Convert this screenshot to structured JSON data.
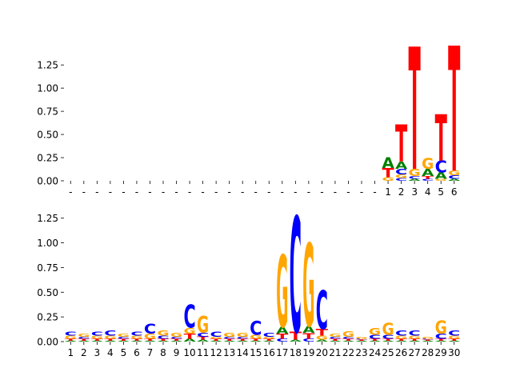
{
  "chart_data": [
    {
      "type": "sequence-logo",
      "title": "",
      "xlabel": "",
      "ylabel": "",
      "ylim": [
        0,
        1.45
      ],
      "yticks": [
        "0.00",
        "0.25",
        "0.50",
        "0.75",
        "1.00",
        "1.25"
      ],
      "positions": [
        "-",
        "-",
        "-",
        "-",
        "-",
        "-",
        "-",
        "-",
        "-",
        "-",
        "-",
        "-",
        "-",
        "-",
        "-",
        "-",
        "-",
        "-",
        "-",
        "-",
        "-",
        "-",
        "-",
        "-",
        "1",
        "2",
        "3",
        "4",
        "5",
        "6"
      ],
      "colors": {
        "A": "#008000",
        "C": "#0000ff",
        "G": "#ffa500",
        "T": "#ff0000"
      },
      "columns": [
        [],
        [],
        [],
        [],
        [],
        [],
        [],
        [],
        [],
        [],
        [],
        [],
        [],
        [],
        [],
        [],
        [],
        [],
        [],
        [],
        [],
        [],
        [],
        [],
        [
          [
            "G",
            0.04
          ],
          [
            "T",
            0.1
          ],
          [
            "A",
            0.12
          ]
        ],
        [
          [
            "C",
            0.03
          ],
          [
            "G",
            0.04
          ],
          [
            "C",
            0.06
          ],
          [
            "A",
            0.08
          ],
          [
            "T",
            0.4
          ]
        ],
        [
          [
            "A",
            0.02
          ],
          [
            "C",
            0.03
          ],
          [
            "G",
            0.08
          ],
          [
            "T",
            1.32
          ]
        ],
        [
          [
            "C",
            0.02
          ],
          [
            "T",
            0.03
          ],
          [
            "A",
            0.08
          ],
          [
            "G",
            0.12
          ]
        ],
        [
          [
            "G",
            0.02
          ],
          [
            "A",
            0.07
          ],
          [
            "C",
            0.13
          ],
          [
            "T",
            0.5
          ]
        ],
        [
          [
            "A",
            0.02
          ],
          [
            "C",
            0.04
          ],
          [
            "G",
            0.05
          ],
          [
            "T",
            1.35
          ]
        ]
      ]
    },
    {
      "type": "sequence-logo",
      "title": "",
      "xlabel": "",
      "ylabel": "",
      "ylim": [
        0,
        1.45
      ],
      "yticks": [
        "0.00",
        "0.25",
        "0.50",
        "0.75",
        "1.00",
        "1.25"
      ],
      "positions": [
        "1",
        "2",
        "3",
        "4",
        "5",
        "6",
        "7",
        "8",
        "9",
        "10",
        "11",
        "12",
        "13",
        "14",
        "15",
        "16",
        "17",
        "18",
        "19",
        "20",
        "21",
        "22",
        "23",
        "24",
        "25",
        "26",
        "27",
        "28",
        "29",
        "30"
      ],
      "colors": {
        "A": "#008000",
        "C": "#0000ff",
        "G": "#ffa500",
        "T": "#ff0000"
      },
      "columns": [
        [
          [
            "A",
            0.01
          ],
          [
            "T",
            0.02
          ],
          [
            "G",
            0.03
          ],
          [
            "C",
            0.04
          ]
        ],
        [
          [
            "A",
            0.01
          ],
          [
            "T",
            0.02
          ],
          [
            "C",
            0.02
          ],
          [
            "G",
            0.03
          ]
        ],
        [
          [
            "A",
            0.01
          ],
          [
            "T",
            0.02
          ],
          [
            "G",
            0.03
          ],
          [
            "C",
            0.04
          ]
        ],
        [
          [
            "A",
            0.01
          ],
          [
            "T",
            0.02
          ],
          [
            "G",
            0.03
          ],
          [
            "C",
            0.05
          ]
        ],
        [
          [
            "A",
            0.01
          ],
          [
            "T",
            0.02
          ],
          [
            "C",
            0.02
          ],
          [
            "G",
            0.03
          ]
        ],
        [
          [
            "A",
            0.01
          ],
          [
            "T",
            0.02
          ],
          [
            "G",
            0.03
          ],
          [
            "C",
            0.04
          ]
        ],
        [
          [
            "A",
            0.01
          ],
          [
            "T",
            0.02
          ],
          [
            "G",
            0.05
          ],
          [
            "C",
            0.1
          ]
        ],
        [
          [
            "A",
            0.01
          ],
          [
            "T",
            0.02
          ],
          [
            "C",
            0.03
          ],
          [
            "G",
            0.05
          ]
        ],
        [
          [
            "A",
            0.01
          ],
          [
            "T",
            0.02
          ],
          [
            "C",
            0.02
          ],
          [
            "G",
            0.04
          ]
        ],
        [
          [
            "A",
            0.03
          ],
          [
            "T",
            0.05
          ],
          [
            "G",
            0.06
          ],
          [
            "C",
            0.23
          ]
        ],
        [
          [
            "A",
            0.02
          ],
          [
            "T",
            0.03
          ],
          [
            "C",
            0.04
          ],
          [
            "G",
            0.17
          ]
        ],
        [
          [
            "A",
            0.01
          ],
          [
            "T",
            0.02
          ],
          [
            "G",
            0.02
          ],
          [
            "C",
            0.05
          ]
        ],
        [
          [
            "A",
            0.01
          ],
          [
            "T",
            0.02
          ],
          [
            "C",
            0.02
          ],
          [
            "G",
            0.04
          ]
        ],
        [
          [
            "A",
            0.01
          ],
          [
            "T",
            0.02
          ],
          [
            "C",
            0.02
          ],
          [
            "G",
            0.04
          ]
        ],
        [
          [
            "A",
            0.01
          ],
          [
            "T",
            0.02
          ],
          [
            "G",
            0.04
          ],
          [
            "C",
            0.14
          ]
        ],
        [
          [
            "A",
            0.01
          ],
          [
            "T",
            0.02
          ],
          [
            "G",
            0.02
          ],
          [
            "C",
            0.04
          ]
        ],
        [
          [
            "C",
            0.03
          ],
          [
            "T",
            0.05
          ],
          [
            "A",
            0.07
          ],
          [
            "G",
            0.73
          ]
        ],
        [
          [
            "A",
            0.02
          ],
          [
            "T",
            0.08
          ],
          [
            "C",
            1.17
          ]
        ],
        [
          [
            "C",
            0.03
          ],
          [
            "T",
            0.06
          ],
          [
            "A",
            0.07
          ],
          [
            "G",
            0.84
          ]
        ],
        [
          [
            "A",
            0.02
          ],
          [
            "G",
            0.04
          ],
          [
            "T",
            0.07
          ],
          [
            "C",
            0.39
          ]
        ],
        [
          [
            "A",
            0.01
          ],
          [
            "T",
            0.02
          ],
          [
            "C",
            0.02
          ],
          [
            "G",
            0.03
          ]
        ],
        [
          [
            "A",
            0.01
          ],
          [
            "T",
            0.02
          ],
          [
            "C",
            0.02
          ],
          [
            "G",
            0.06
          ]
        ],
        [
          [
            "A",
            0.01
          ],
          [
            "T",
            0.01
          ],
          [
            "C",
            0.01
          ],
          [
            "G",
            0.02
          ]
        ],
        [
          [
            "A",
            0.01
          ],
          [
            "T",
            0.02
          ],
          [
            "C",
            0.04
          ],
          [
            "G",
            0.07
          ]
        ],
        [
          [
            "A",
            0.01
          ],
          [
            "T",
            0.02
          ],
          [
            "C",
            0.04
          ],
          [
            "G",
            0.12
          ]
        ],
        [
          [
            "A",
            0.01
          ],
          [
            "T",
            0.02
          ],
          [
            "G",
            0.03
          ],
          [
            "C",
            0.05
          ]
        ],
        [
          [
            "A",
            0.01
          ],
          [
            "T",
            0.02
          ],
          [
            "G",
            0.03
          ],
          [
            "C",
            0.05
          ]
        ],
        [
          [
            "A",
            0.01
          ],
          [
            "T",
            0.01
          ],
          [
            "C",
            0.01
          ],
          [
            "G",
            0.02
          ]
        ],
        [
          [
            "A",
            0.01
          ],
          [
            "T",
            0.02
          ],
          [
            "C",
            0.05
          ],
          [
            "G",
            0.13
          ]
        ],
        [
          [
            "A",
            0.01
          ],
          [
            "T",
            0.02
          ],
          [
            "G",
            0.03
          ],
          [
            "C",
            0.05
          ]
        ]
      ]
    }
  ]
}
